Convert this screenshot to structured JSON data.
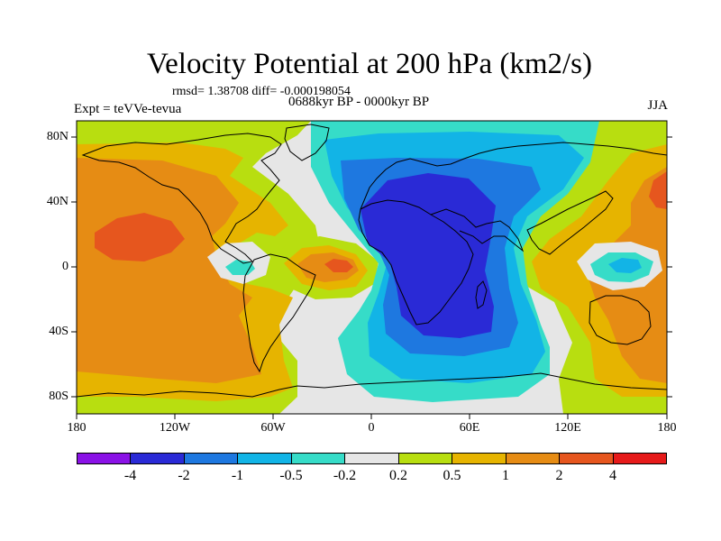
{
  "title": "Velocity Potential at 200 hPa (km2/s)",
  "stats": "rmsd= 1.38708 diff= -0.000198054",
  "experiment": "Expt = teVVe-tevua",
  "period": "0688kyr BP - 0000kyr BP",
  "season": "JJA",
  "map": {
    "projection": "cylindrical equidistant",
    "lat_labels": [
      "80N",
      "40N",
      "0",
      "40S",
      "80S"
    ],
    "lon_labels": [
      "180",
      "120W",
      "60W",
      "0",
      "60E",
      "120E",
      "180"
    ]
  },
  "colorbar": {
    "colors": [
      "#8a12e6",
      "#2a2ad6",
      "#1e78e0",
      "#12b4e6",
      "#36dcc8",
      "#e6e6e6",
      "#b8de10",
      "#e6b400",
      "#e68c14",
      "#e6561e",
      "#e61a1a"
    ],
    "labels": [
      "-4",
      "-2",
      "-1",
      "-0.5",
      "-0.2",
      "0.2",
      "0.5",
      "1",
      "2",
      "4"
    ]
  }
}
